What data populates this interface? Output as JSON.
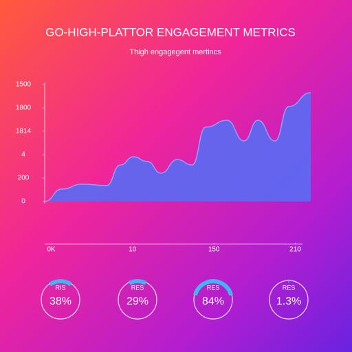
{
  "chart_data": {
    "type": "area",
    "title": "GO-HIGH-PLATTOR ENGAGEMENT METRICS",
    "subtitle": "Thigh engagegent mertincs",
    "x": [
      -0.08,
      0.13,
      0.38,
      0.68,
      0.85,
      1.01,
      1.18,
      1.35,
      1.55,
      1.73,
      1.9,
      2.16,
      2.37,
      2.54,
      2.75,
      2.92,
      3.19
    ],
    "values": [
      0,
      0.53,
      0.74,
      0.68,
      1.56,
      1.91,
      1.71,
      1.21,
      1.79,
      1.56,
      3.18,
      3.47,
      2.59,
      3.47,
      2.59,
      4.06,
      4.65
    ],
    "color": "#5b6af2",
    "xlim": [
      -0.08,
      3.19
    ],
    "xticks": [
      {
        "value": 0,
        "label": "0K"
      },
      {
        "value": 1,
        "label": "10"
      },
      {
        "value": 2,
        "label": "150"
      },
      {
        "value": 3,
        "label": "210"
      }
    ],
    "ylim": [
      0,
      5.2
    ],
    "yticks": [
      0,
      {
        "value": 1,
        "label": "200"
      },
      {
        "value": 2,
        "label": "4"
      },
      {
        "value": 3,
        "label": "1814"
      },
      {
        "value": 4,
        "label": "1800"
      },
      {
        "value": 5,
        "label": "1500"
      }
    ],
    "kpis": {
      "labels": [
        "RIS",
        "RES",
        "RES",
        "RES"
      ],
      "values": [
        38,
        29,
        84,
        1.3
      ],
      "value_labels": [
        "38%",
        "29%",
        "84%",
        "1.3%"
      ],
      "color": "#3fb6f0"
    }
  }
}
